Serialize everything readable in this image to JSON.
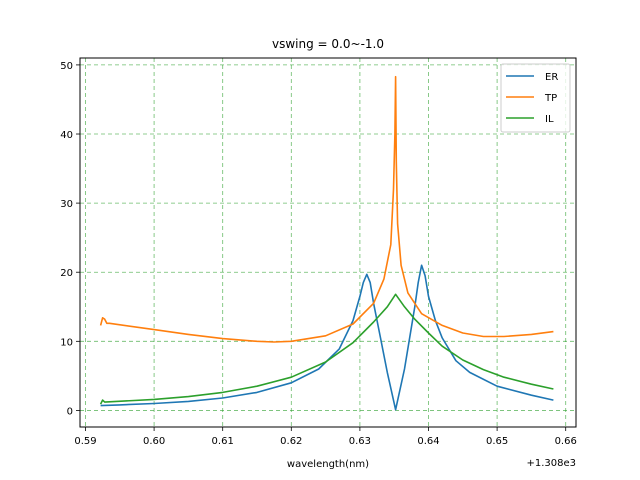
{
  "chart_data": {
    "type": "line",
    "title": "vswing = 0.0~-1.0",
    "xlabel": "wavelength(nm)",
    "ylabel": "",
    "x_offset_label": "+1.308e3",
    "xlim": [
      0.5892,
      0.6615
    ],
    "ylim": [
      -2.4,
      51
    ],
    "x_ticks": [
      0.59,
      0.6,
      0.61,
      0.62,
      0.63,
      0.64,
      0.65,
      0.66
    ],
    "x_tick_labels": [
      "0.59",
      "0.60",
      "0.61",
      "0.62",
      "0.63",
      "0.64",
      "0.65",
      "0.66"
    ],
    "y_ticks": [
      0,
      10,
      20,
      30,
      40,
      50
    ],
    "y_tick_labels": [
      "0",
      "10",
      "20",
      "30",
      "40",
      "50"
    ],
    "grid": true,
    "grid_color": "#2ca02c",
    "legend_position": "top-right",
    "series": [
      {
        "name": "ER",
        "color": "#1f77b4",
        "x": [
          0.5922,
          0.595,
          0.6,
          0.605,
          0.61,
          0.615,
          0.62,
          0.624,
          0.627,
          0.629,
          0.63,
          0.6305,
          0.631,
          0.6315,
          0.632,
          0.633,
          0.634,
          0.6352,
          0.6365,
          0.638,
          0.6385,
          0.639,
          0.6395,
          0.64,
          0.641,
          0.642,
          0.644,
          0.646,
          0.65,
          0.655,
          0.6582
        ],
        "y": [
          0.7,
          0.8,
          1.0,
          1.3,
          1.8,
          2.6,
          4.0,
          6.0,
          8.9,
          13.0,
          16.5,
          18.5,
          19.7,
          18.5,
          15.5,
          10.5,
          5.5,
          0.1,
          6.0,
          15.0,
          18.5,
          21.0,
          19.5,
          16.5,
          13.0,
          10.5,
          7.2,
          5.5,
          3.5,
          2.2,
          1.5
        ]
      },
      {
        "name": "TP",
        "color": "#ff7f0e",
        "x": [
          0.5922,
          0.5925,
          0.5928,
          0.5931,
          0.5935,
          0.6,
          0.605,
          0.61,
          0.615,
          0.6175,
          0.62,
          0.625,
          0.629,
          0.632,
          0.6335,
          0.6345,
          0.6349,
          0.6351,
          0.6352,
          0.6353,
          0.6355,
          0.636,
          0.637,
          0.639,
          0.642,
          0.645,
          0.648,
          0.651,
          0.655,
          0.6582
        ],
        "y": [
          12.3,
          13.4,
          13.2,
          12.6,
          12.6,
          11.7,
          11.0,
          10.4,
          10.0,
          9.9,
          10.0,
          10.8,
          12.5,
          15.5,
          19.0,
          24.0,
          32.0,
          40.0,
          48.3,
          36.0,
          27.0,
          21.0,
          17.0,
          14.0,
          12.3,
          11.2,
          10.7,
          10.7,
          11.0,
          11.4
        ]
      },
      {
        "name": "IL",
        "color": "#2ca02c",
        "x": [
          0.5922,
          0.5925,
          0.5928,
          0.6,
          0.605,
          0.61,
          0.615,
          0.62,
          0.625,
          0.629,
          0.632,
          0.634,
          0.6352,
          0.6365,
          0.638,
          0.64,
          0.642,
          0.645,
          0.648,
          0.651,
          0.655,
          0.6582
        ],
        "y": [
          0.9,
          1.5,
          1.2,
          1.6,
          2.0,
          2.6,
          3.5,
          4.8,
          7.0,
          9.8,
          12.8,
          15.0,
          16.8,
          15.0,
          13.2,
          11.2,
          9.3,
          7.3,
          5.9,
          4.8,
          3.8,
          3.1
        ]
      }
    ]
  }
}
